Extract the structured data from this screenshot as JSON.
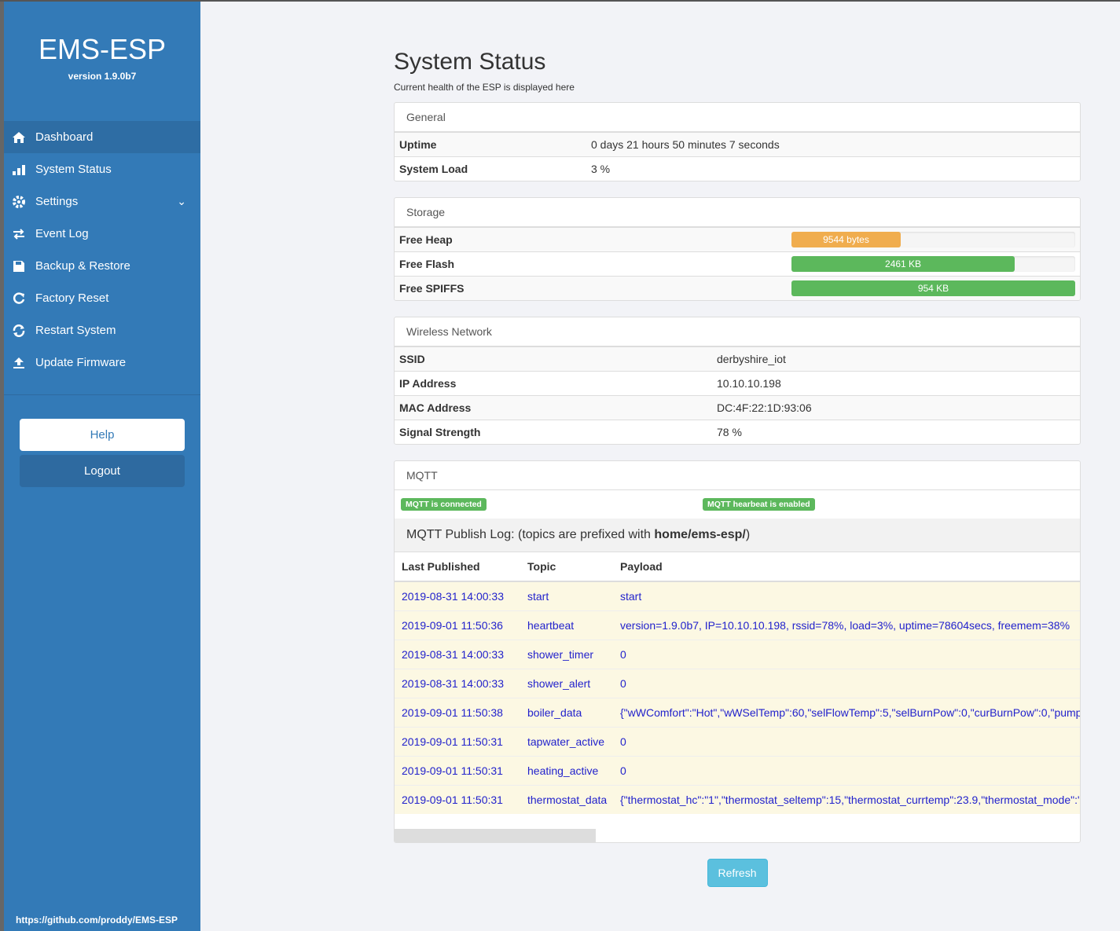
{
  "sidebar": {
    "title": "EMS-ESP",
    "version": "version 1.9.0b7",
    "menu": [
      "Dashboard",
      "System Status",
      "Settings",
      "Event Log",
      "Backup & Restore",
      "Factory Reset",
      "Restart System",
      "Update Firmware"
    ],
    "help": "Help",
    "logout": "Logout",
    "footer": "https://github.com/proddy/EMS-ESP"
  },
  "page": {
    "title": "System Status",
    "subtitle": "Current health of the ESP is displayed here"
  },
  "general": {
    "heading": "General",
    "rows": [
      [
        "Uptime",
        "0 days 21 hours 50 minutes 7 seconds"
      ],
      [
        "System Load",
        "3 %"
      ]
    ]
  },
  "storage": {
    "heading": "Storage",
    "rows": [
      {
        "label": "Free Heap",
        "value": "9544 bytes",
        "percent": 38.5,
        "color": "#f0ad4e"
      },
      {
        "label": "Free Flash",
        "value": "2461 KB",
        "percent": 78.7,
        "color": "#5cb85c"
      },
      {
        "label": "Free SPIFFS",
        "value": "954 KB",
        "percent": 100,
        "color": "#5cb85c"
      }
    ]
  },
  "wireless": {
    "heading": "Wireless Network",
    "rows": [
      [
        "SSID",
        "derbyshire_iot"
      ],
      [
        "IP Address",
        "10.10.10.198"
      ],
      [
        "MAC Address",
        "DC:4F:22:1D:93:06"
      ],
      [
        "Signal Strength",
        "78 %"
      ]
    ]
  },
  "mqtt": {
    "heading": "MQTT",
    "badges": [
      "MQTT is connected",
      "MQTT hearbeat is enabled"
    ],
    "log_title_prefix": "MQTT Publish Log: (topics are prefixed with ",
    "log_title_bold": "home/ems-esp/",
    "log_title_suffix": ")",
    "columns": [
      "Last Published",
      "Topic",
      "Payload"
    ],
    "rows": [
      [
        "2019-08-31 14:00:33",
        "start",
        "start"
      ],
      [
        "2019-09-01 11:50:36",
        "heartbeat",
        "version=1.9.0b7, IP=10.10.10.198, rssid=78%, load=3%, uptime=78604secs, freemem=38%"
      ],
      [
        "2019-08-31 14:00:33",
        "shower_timer",
        "0"
      ],
      [
        "2019-08-31 14:00:33",
        "shower_alert",
        "0"
      ],
      [
        "2019-09-01 11:50:38",
        "boiler_data",
        "{\"wWComfort\":\"Hot\",\"wWSelTemp\":60,\"selFlowTemp\":5,\"selBurnPow\":0,\"curBurnPow\":0,\"pump"
      ],
      [
        "2019-09-01 11:50:31",
        "tapwater_active",
        "0"
      ],
      [
        "2019-09-01 11:50:31",
        "heating_active",
        "0"
      ],
      [
        "2019-09-01 11:50:31",
        "thermostat_data",
        "{\"thermostat_hc\":\"1\",\"thermostat_seltemp\":15,\"thermostat_currtemp\":23.9,\"thermostat_mode\":\""
      ]
    ]
  },
  "refresh": "Refresh"
}
